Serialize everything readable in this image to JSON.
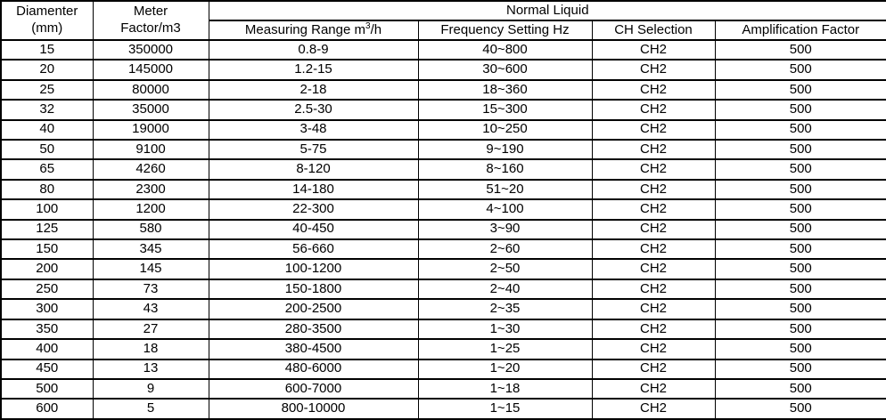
{
  "table": {
    "header": {
      "col_diameter": {
        "line1": "Diamenter",
        "line2": "(mm)"
      },
      "col_meter_factor": {
        "line1": "Meter",
        "line2": "Factor/m3"
      },
      "group": "Normal Liquid",
      "sub": {
        "measuring_range": {
          "prefix": "Measuring Range m",
          "sup": "3",
          "suffix": "/h"
        },
        "frequency": "Frequency Setting Hz",
        "ch_selection": "CH Selection",
        "amplification": "Amplification Factor"
      }
    },
    "rows": [
      [
        "15",
        "350000",
        "0.8-9",
        "40~800",
        "CH2",
        "500"
      ],
      [
        "20",
        "145000",
        "1.2-15",
        "30~600",
        "CH2",
        "500"
      ],
      [
        "25",
        "80000",
        "2-18",
        "18~360",
        "CH2",
        "500"
      ],
      [
        "32",
        "35000",
        "2.5-30",
        "15~300",
        "CH2",
        "500"
      ],
      [
        "40",
        "19000",
        "3-48",
        "10~250",
        "CH2",
        "500"
      ],
      [
        "50",
        "9100",
        "5-75",
        "9~190",
        "CH2",
        "500"
      ],
      [
        "65",
        "4260",
        "8-120",
        "8~160",
        "CH2",
        "500"
      ],
      [
        "80",
        "2300",
        "14-180",
        "51~20",
        "CH2",
        "500"
      ],
      [
        "100",
        "1200",
        "22-300",
        "4~100",
        "CH2",
        "500"
      ],
      [
        "125",
        "580",
        "40-450",
        "3~90",
        "CH2",
        "500"
      ],
      [
        "150",
        "345",
        "56-660",
        "2~60",
        "CH2",
        "500"
      ],
      [
        "200",
        "145",
        "100-1200",
        "2~50",
        "CH2",
        "500"
      ],
      [
        "250",
        "73",
        "150-1800",
        "2~40",
        "CH2",
        "500"
      ],
      [
        "300",
        "43",
        "200-2500",
        "2~35",
        "CH2",
        "500"
      ],
      [
        "350",
        "27",
        "280-3500",
        "1~30",
        "CH2",
        "500"
      ],
      [
        "400",
        "18",
        "380-4500",
        "1~25",
        "CH2",
        "500"
      ],
      [
        "450",
        "13",
        "480-6000",
        "1~20",
        "CH2",
        "500"
      ],
      [
        "500",
        "9",
        "600-7000",
        "1~18",
        "CH2",
        "500"
      ],
      [
        "600",
        "5",
        "800-10000",
        "1~15",
        "CH2",
        "500"
      ]
    ]
  },
  "chart_data": {
    "type": "table",
    "title": "Normal Liquid",
    "columns": [
      "Diamenter (mm)",
      "Meter Factor/m3",
      "Measuring Range m3/h",
      "Frequency Setting Hz",
      "CH Selection",
      "Amplification Factor"
    ],
    "rows": [
      [
        "15",
        "350000",
        "0.8-9",
        "40~800",
        "CH2",
        "500"
      ],
      [
        "20",
        "145000",
        "1.2-15",
        "30~600",
        "CH2",
        "500"
      ],
      [
        "25",
        "80000",
        "2-18",
        "18~360",
        "CH2",
        "500"
      ],
      [
        "32",
        "35000",
        "2.5-30",
        "15~300",
        "CH2",
        "500"
      ],
      [
        "40",
        "19000",
        "3-48",
        "10~250",
        "CH2",
        "500"
      ],
      [
        "50",
        "9100",
        "5-75",
        "9~190",
        "CH2",
        "500"
      ],
      [
        "65",
        "4260",
        "8-120",
        "8~160",
        "CH2",
        "500"
      ],
      [
        "80",
        "2300",
        "14-180",
        "51~20",
        "CH2",
        "500"
      ],
      [
        "100",
        "1200",
        "22-300",
        "4~100",
        "CH2",
        "500"
      ],
      [
        "125",
        "580",
        "40-450",
        "3~90",
        "CH2",
        "500"
      ],
      [
        "150",
        "345",
        "56-660",
        "2~60",
        "CH2",
        "500"
      ],
      [
        "200",
        "145",
        "100-1200",
        "2~50",
        "CH2",
        "500"
      ],
      [
        "250",
        "73",
        "150-1800",
        "2~40",
        "CH2",
        "500"
      ],
      [
        "300",
        "43",
        "200-2500",
        "2~35",
        "CH2",
        "500"
      ],
      [
        "350",
        "27",
        "280-3500",
        "1~30",
        "CH2",
        "500"
      ],
      [
        "400",
        "18",
        "380-4500",
        "1~25",
        "CH2",
        "500"
      ],
      [
        "450",
        "13",
        "480-6000",
        "1~20",
        "CH2",
        "500"
      ],
      [
        "500",
        "9",
        "600-7000",
        "1~18",
        "CH2",
        "500"
      ],
      [
        "600",
        "5",
        "800-10000",
        "1~15",
        "CH2",
        "500"
      ]
    ]
  },
  "colors": {
    "background": "#ffffff",
    "text": "#000000",
    "border": "#000000"
  }
}
